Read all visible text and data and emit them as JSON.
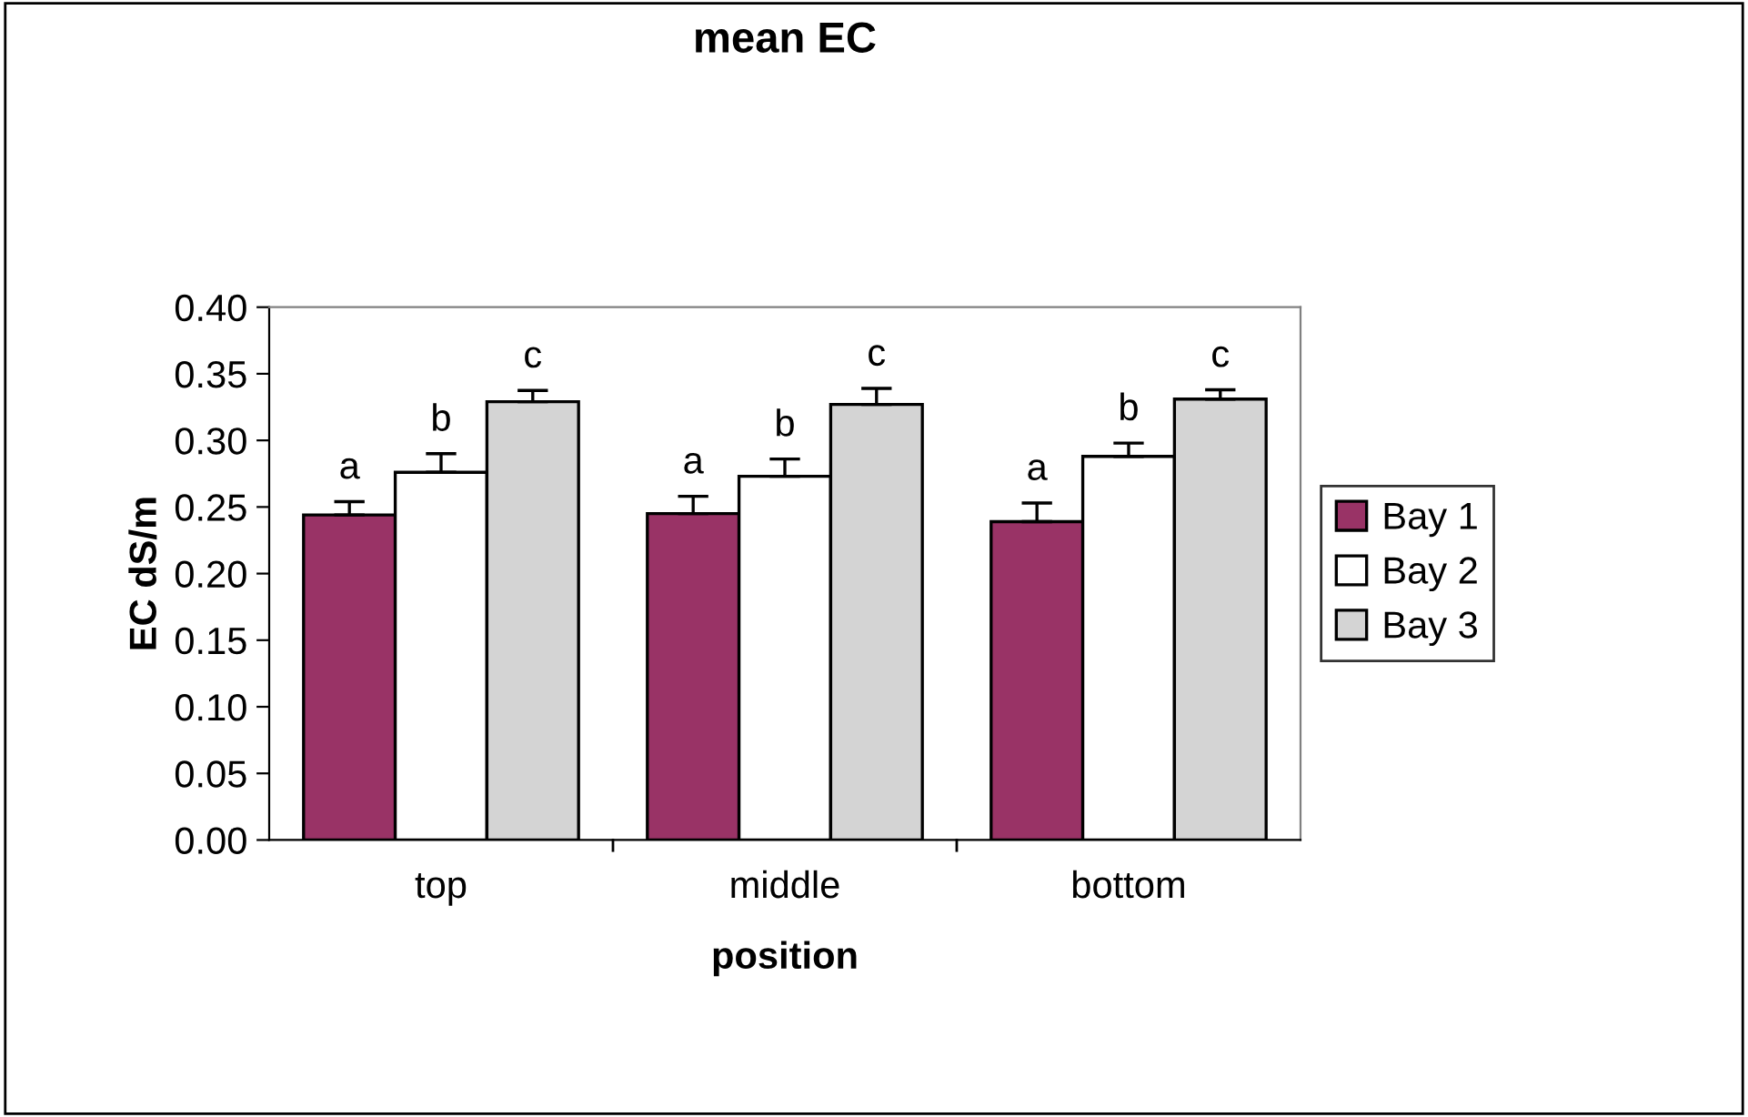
{
  "chart_data": {
    "type": "bar",
    "title": "mean EC",
    "xlabel": "position",
    "ylabel": "EC dS/m",
    "categories": [
      "top",
      "middle",
      "bottom"
    ],
    "series": [
      {
        "name": "Bay 1",
        "color": "#993366",
        "values": [
          0.244,
          0.245,
          0.239
        ],
        "errors": [
          [
            0.244,
            0.254
          ],
          [
            0.245,
            0.258
          ],
          [
            0.239,
            0.253
          ]
        ],
        "value_labels": [
          "a",
          "a",
          "a"
        ]
      },
      {
        "name": "Bay 2",
        "color": "#ffffff",
        "values": [
          0.276,
          0.273,
          0.288
        ],
        "errors": [
          [
            0.276,
            0.29
          ],
          [
            0.273,
            0.286
          ],
          [
            0.288,
            0.298
          ]
        ],
        "value_labels": [
          "b",
          "b",
          "b"
        ]
      },
      {
        "name": "Bay 3",
        "color": "#d4d4d4",
        "values": [
          0.329,
          0.327,
          0.331
        ],
        "errors": [
          [
            0.329,
            0.3375
          ],
          [
            0.327,
            0.339
          ],
          [
            0.331,
            0.338
          ]
        ],
        "value_labels": [
          "c",
          "c",
          "c"
        ]
      }
    ],
    "ylim": [
      0,
      0.4
    ],
    "yticks": [
      {
        "value": 0,
        "label": "0.00"
      },
      {
        "value": 0.05,
        "label": "0.05"
      },
      {
        "value": 0.1,
        "label": "0.10"
      },
      {
        "value": 0.15,
        "label": "0.15"
      },
      {
        "value": 0.2,
        "label": "0.20"
      },
      {
        "value": 0.25,
        "label": "0.25"
      },
      {
        "value": 0.3,
        "label": "0.30"
      },
      {
        "value": 0.35,
        "label": "0.35"
      },
      {
        "value": 0.4,
        "label": "0.40"
      }
    ],
    "grid": false,
    "legend": "right"
  }
}
